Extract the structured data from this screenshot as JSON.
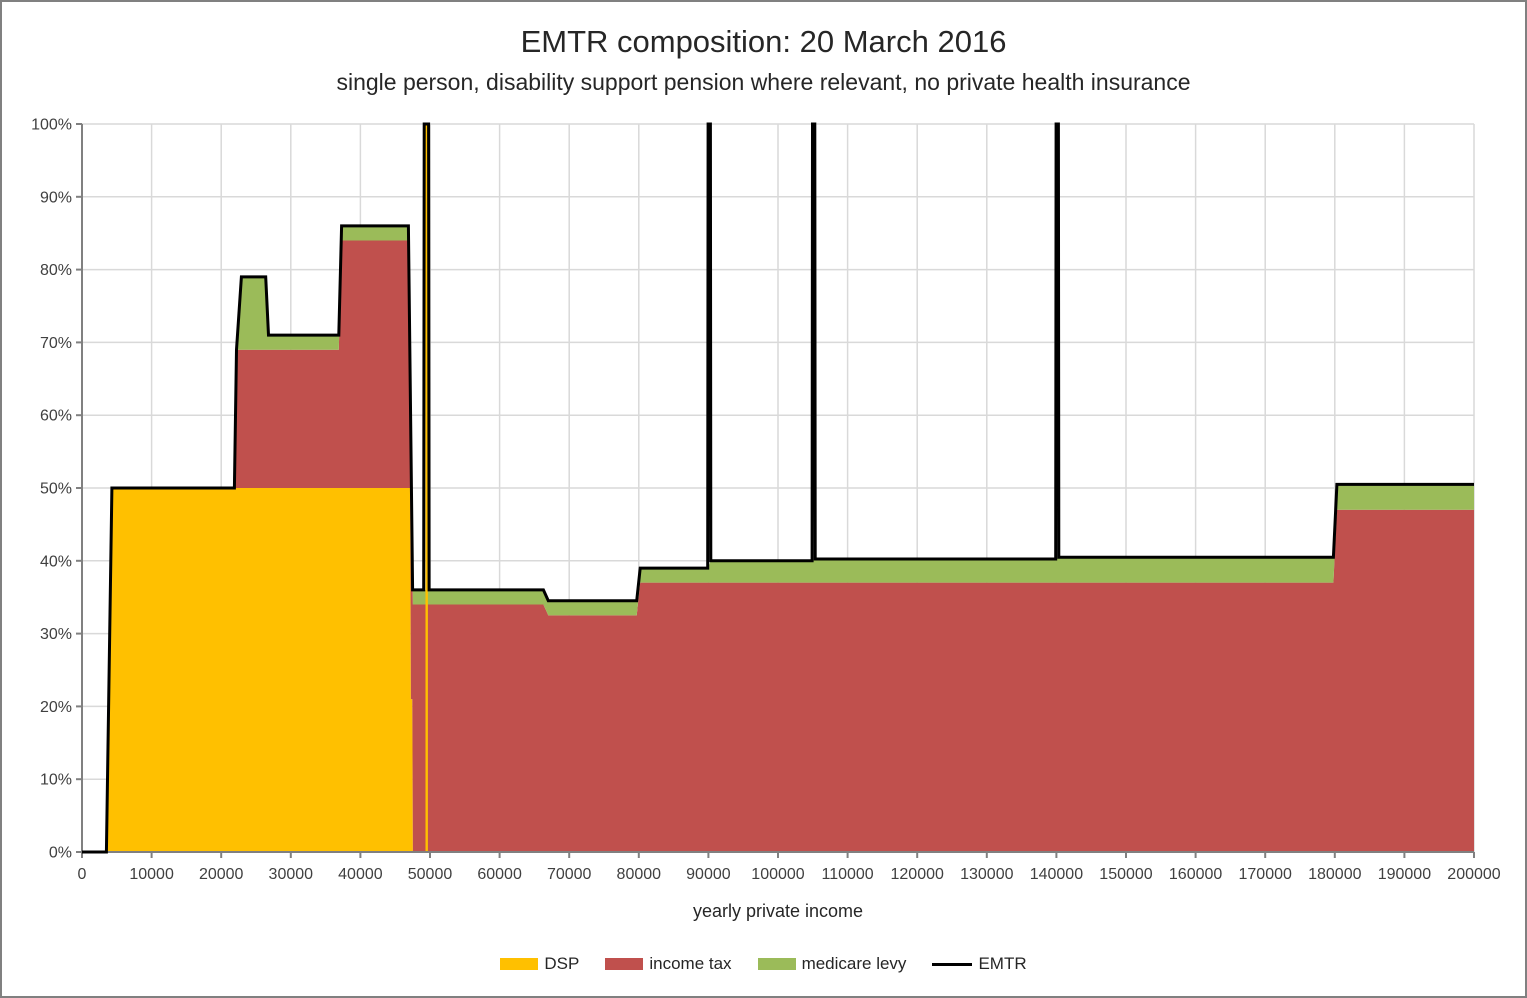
{
  "window": {
    "background": "#FFFFFF",
    "border_color": "#808080"
  },
  "chart_data": {
    "type": "area",
    "stacking": "stacked",
    "title": "EMTR composition: 20 March 2016",
    "subtitle": "single person, disability support pension where relevant, no private health insurance",
    "xlabel": "yearly private income",
    "ylabel": "",
    "xlim": [
      0,
      200000
    ],
    "ylim_pct": [
      0,
      100
    ],
    "x_tick_step": 10000,
    "y_tick_step_pct": 10,
    "x_tick_labels": [
      "0",
      "10000",
      "20000",
      "30000",
      "40000",
      "50000",
      "60000",
      "70000",
      "80000",
      "90000",
      "100000",
      "110000",
      "120000",
      "130000",
      "140000",
      "150000",
      "160000",
      "170000",
      "180000",
      "190000",
      "200000"
    ],
    "y_tick_labels": [
      "0%",
      "10%",
      "20%",
      "30%",
      "40%",
      "50%",
      "60%",
      "70%",
      "80%",
      "90%",
      "100%"
    ],
    "grid": true,
    "legend_position": "bottom",
    "colors": {
      "dsp": "#FFC000",
      "income_tax": "#C0504D",
      "medicare_levy": "#9BBB59",
      "emtr_line": "#000000",
      "gridline": "#D9D9D9",
      "axis": "#808080",
      "text": "#404040",
      "title_text": "#262626"
    },
    "legend": [
      {
        "label": "DSP",
        "series": "dsp",
        "marker": "area"
      },
      {
        "label": "income tax",
        "series": "income_tax",
        "marker": "area"
      },
      {
        "label": "medicare levy",
        "series": "medicare_levy",
        "marker": "area"
      },
      {
        "label": "EMTR",
        "series": "emtr",
        "marker": "line"
      }
    ],
    "stacked_area_tops_pct": {
      "dsp": [
        [
          0,
          0
        ],
        [
          3500,
          0
        ],
        [
          4300,
          50
        ],
        [
          46900,
          50
        ],
        [
          47150,
          50
        ],
        [
          47250,
          21
        ],
        [
          47450,
          21
        ],
        [
          47550,
          0
        ],
        [
          200000,
          0
        ]
      ],
      "income_tax": [
        [
          0,
          0
        ],
        [
          3500,
          0
        ],
        [
          4300,
          50
        ],
        [
          21900,
          50
        ],
        [
          22200,
          69
        ],
        [
          36900,
          69
        ],
        [
          37300,
          84
        ],
        [
          46900,
          84
        ],
        [
          47550,
          34
        ],
        [
          66300,
          34
        ],
        [
          67000,
          32.5
        ],
        [
          79700,
          32.5
        ],
        [
          80200,
          37
        ],
        [
          179800,
          37
        ],
        [
          180300,
          47
        ],
        [
          200000,
          47
        ]
      ],
      "medicare_levy": [
        [
          0,
          0
        ],
        [
          3500,
          0
        ],
        [
          4300,
          50
        ],
        [
          21900,
          50
        ],
        [
          22200,
          69
        ],
        [
          22900,
          79
        ],
        [
          26400,
          79
        ],
        [
          26800,
          71
        ],
        [
          36900,
          71
        ],
        [
          37300,
          86
        ],
        [
          46900,
          86
        ],
        [
          47550,
          36
        ],
        [
          66300,
          36
        ],
        [
          67000,
          34.5
        ],
        [
          79700,
          34.5
        ],
        [
          80200,
          39
        ],
        [
          89900,
          39
        ],
        [
          90350,
          40
        ],
        [
          104900,
          40
        ],
        [
          105350,
          40.25
        ],
        [
          139900,
          40.25
        ],
        [
          140350,
          40.5
        ],
        [
          179800,
          40.5
        ],
        [
          180300,
          50.5
        ],
        [
          200000,
          50.5
        ]
      ]
    },
    "emtr_line_pct": [
      [
        0,
        0
      ],
      [
        3500,
        0
      ],
      [
        4300,
        50
      ],
      [
        21900,
        50
      ],
      [
        22200,
        69
      ],
      [
        22900,
        79
      ],
      [
        26400,
        79
      ],
      [
        26800,
        71
      ],
      [
        36900,
        71
      ],
      [
        37300,
        86
      ],
      [
        46900,
        86
      ],
      [
        47500,
        36
      ],
      [
        49100,
        36
      ],
      [
        49170,
        100
      ],
      [
        49800,
        100
      ],
      [
        49870,
        36
      ],
      [
        66300,
        36
      ],
      [
        67000,
        34.5
      ],
      [
        79700,
        34.5
      ],
      [
        80200,
        39
      ],
      [
        89900,
        39
      ],
      [
        89960,
        100
      ],
      [
        90290,
        100
      ],
      [
        90350,
        40
      ],
      [
        104900,
        40
      ],
      [
        104960,
        100
      ],
      [
        105290,
        100
      ],
      [
        105350,
        40.25
      ],
      [
        139900,
        40.25
      ],
      [
        139960,
        100
      ],
      [
        140290,
        100
      ],
      [
        140350,
        40.5
      ],
      [
        179800,
        40.5
      ],
      [
        180300,
        50.5
      ],
      [
        200000,
        50.5
      ]
    ],
    "spike_columns": [
      {
        "series": "dsp",
        "x0": 49350,
        "x1": 49700,
        "top_pct": 100
      }
    ]
  }
}
